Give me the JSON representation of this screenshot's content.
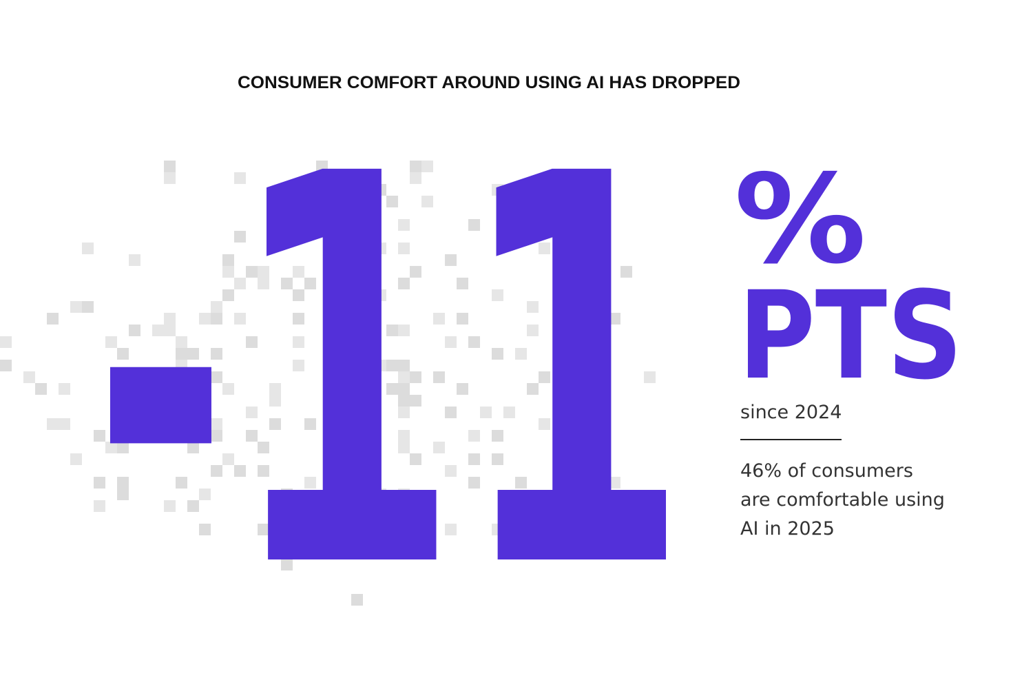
{
  "header": {
    "title": "CONSUMER COMFORT AROUND USING AI HAS DROPPED"
  },
  "stat": {
    "value": "-11",
    "unit_symbol": "%",
    "unit_word": "PTS",
    "period": "since 2024",
    "description": [
      "46% of consumers",
      "are comfortable using",
      "AI in 2025"
    ]
  }
}
